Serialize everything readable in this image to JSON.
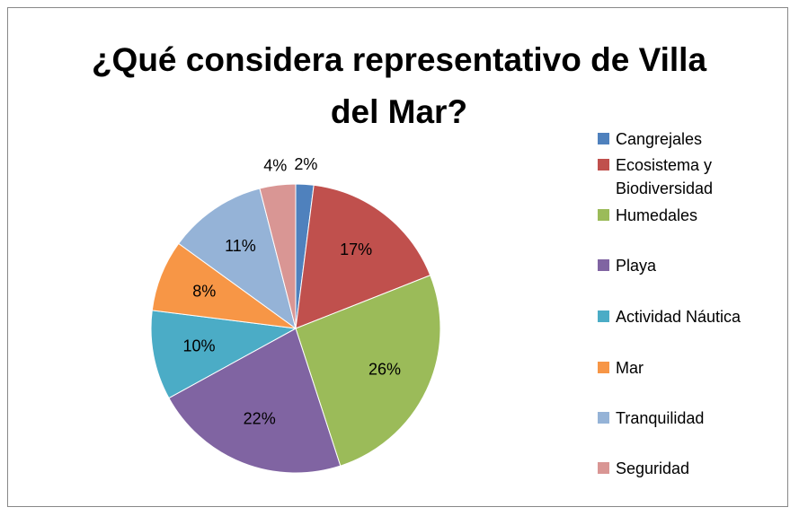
{
  "chart_data": {
    "type": "pie",
    "title": "¿Qué considera representativo de Villa del Mar?",
    "categories": [
      "Cangrejales",
      "Ecosistema y Biodiversidad",
      "Humedales",
      "Playa",
      "Actividad Náutica",
      "Mar",
      "Tranquilidad",
      "Seguridad"
    ],
    "values": [
      2,
      17,
      26,
      22,
      10,
      8,
      11,
      4
    ],
    "value_labels": [
      "2%",
      "17%",
      "26%",
      "22%",
      "10%",
      "8%",
      "11%",
      "4%"
    ],
    "colors": [
      "#4F81BD",
      "#C0504D",
      "#9BBB59",
      "#8064A2",
      "#4BACC6",
      "#F79646",
      "#95B3D7",
      "#D99694"
    ],
    "legend": "right"
  }
}
